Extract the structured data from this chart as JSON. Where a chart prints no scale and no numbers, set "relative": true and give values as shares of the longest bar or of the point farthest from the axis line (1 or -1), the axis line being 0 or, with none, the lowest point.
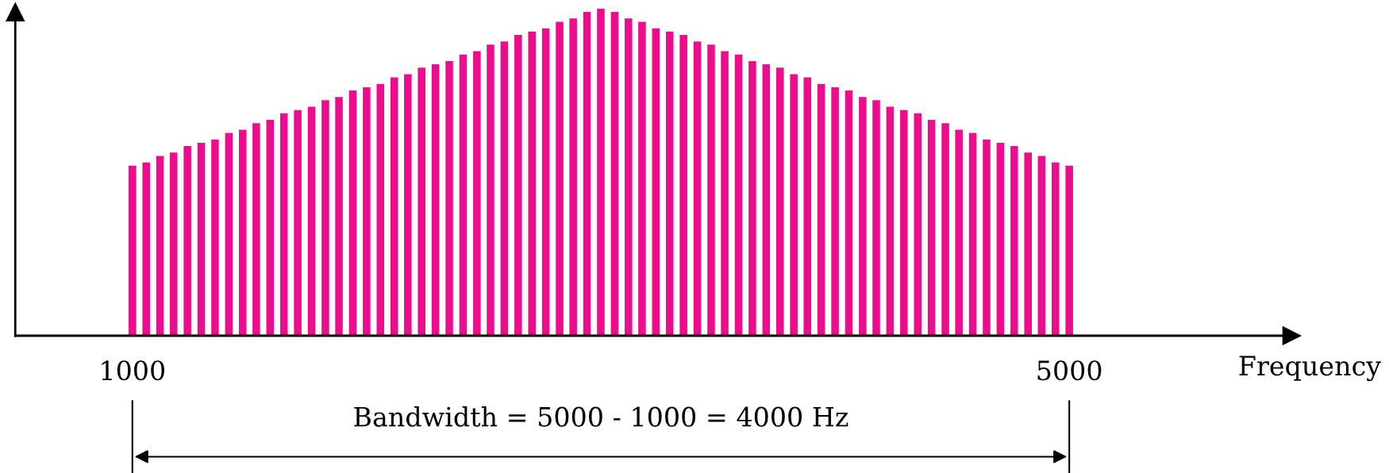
{
  "chart_data": {
    "type": "bar",
    "relative": true,
    "xlabel": "Frequency",
    "x": [
      1000,
      1059,
      1118,
      1176,
      1235,
      1294,
      1353,
      1412,
      1471,
      1529,
      1588,
      1647,
      1706,
      1765,
      1824,
      1882,
      1941,
      2000,
      2059,
      2118,
      2176,
      2235,
      2294,
      2353,
      2412,
      2471,
      2529,
      2588,
      2647,
      2706,
      2765,
      2824,
      2882,
      2941,
      3000,
      3059,
      3118,
      3176,
      3235,
      3294,
      3353,
      3412,
      3471,
      3529,
      3588,
      3647,
      3706,
      3765,
      3824,
      3882,
      3941,
      4000,
      4059,
      4118,
      4176,
      4235,
      4294,
      4353,
      4412,
      4471,
      4529,
      4588,
      4647,
      4706,
      4765,
      4824,
      4882,
      4941,
      5000
    ],
    "values": [
      0.52,
      0.53,
      0.55,
      0.56,
      0.58,
      0.59,
      0.6,
      0.62,
      0.63,
      0.65,
      0.66,
      0.68,
      0.69,
      0.7,
      0.72,
      0.73,
      0.75,
      0.76,
      0.77,
      0.79,
      0.8,
      0.82,
      0.83,
      0.84,
      0.86,
      0.87,
      0.89,
      0.9,
      0.92,
      0.93,
      0.94,
      0.96,
      0.97,
      0.99,
      1,
      0.99,
      0.97,
      0.96,
      0.94,
      0.93,
      0.92,
      0.9,
      0.89,
      0.87,
      0.86,
      0.84,
      0.83,
      0.82,
      0.8,
      0.79,
      0.77,
      0.76,
      0.75,
      0.73,
      0.72,
      0.7,
      0.69,
      0.68,
      0.66,
      0.65,
      0.63,
      0.62,
      0.6,
      0.59,
      0.58,
      0.56,
      0.55,
      0.53,
      0.52
    ],
    "color": "#ec0c8c",
    "xlim": [
      500,
      5950
    ],
    "xticks": [
      1000,
      5000
    ],
    "annotations": [
      "Bandwidth = 5000 - 1000 = 4000 Hz"
    ]
  }
}
